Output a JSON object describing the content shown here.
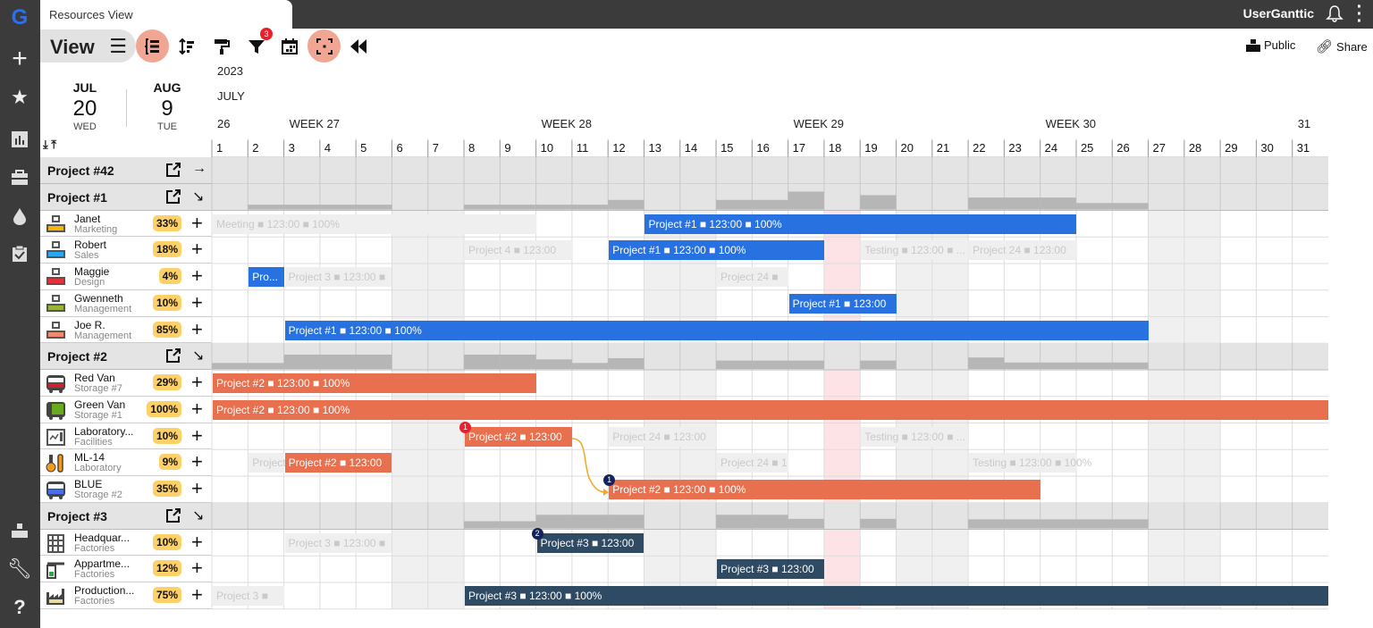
{
  "app": {
    "tab_title": "Resources View",
    "user": "UserGanttic",
    "view_label": "View",
    "public_label": "Public",
    "share_label": "Share",
    "filter_count": "3"
  },
  "colors": {
    "accent": "#f0a692",
    "blue": "#2771e0",
    "orange": "#e8704f",
    "navy": "#2f4a63",
    "pill": "#fdd168",
    "today": "#fde3e6"
  },
  "sidebar_icons": [
    "ganttic-logo-icon",
    "plus-icon",
    "star-icon",
    "report-icon",
    "briefcase-icon",
    "drop-icon",
    "clipboard-check-icon",
    "org-icon",
    "wrench-icon",
    "help-icon"
  ],
  "toolbar": [
    "collapse-tree-icon",
    "sort-icon",
    "paint-roller-icon",
    "filter-icon",
    "calendar-icon",
    "focus-icon",
    "rewind-icon"
  ],
  "dates": {
    "from": {
      "month": "JUL",
      "day": "20",
      "weekday": "WED"
    },
    "to": {
      "month": "AUG",
      "day": "9",
      "weekday": "TUE"
    }
  },
  "timeline": {
    "year": "2023",
    "month": "JULY",
    "weeks": [
      {
        "label": "26",
        "day": 1
      },
      {
        "label": "WEEK 27",
        "day": 3
      },
      {
        "label": "WEEK 28",
        "day": 10
      },
      {
        "label": "WEEK 29",
        "day": 17
      },
      {
        "label": "WEEK 30",
        "day": 24
      },
      {
        "label": "31",
        "day": 31
      }
    ],
    "days": 31,
    "shaded_days": [
      6,
      7,
      13,
      14,
      20,
      21,
      27,
      28
    ],
    "highlight_day": 18
  },
  "rows": [
    {
      "type": "project",
      "name": "Project #42",
      "arrow": "→",
      "load": []
    },
    {
      "type": "project",
      "name": "Project #1",
      "arrow": "↘",
      "load": [
        0,
        0.2,
        0.2,
        0.2,
        0.2,
        0,
        0,
        0.2,
        0.2,
        0.2,
        0.2,
        0.4,
        0,
        0,
        0.4,
        0.4,
        0.75,
        0,
        0.6,
        0,
        0,
        0.5,
        0.5,
        0.5,
        0.27,
        0.27,
        0,
        0,
        0,
        0,
        0
      ]
    },
    {
      "type": "resource",
      "name": "Janet",
      "sub": "Marketing",
      "pct": "33%",
      "icon": "team-icon",
      "icolor": "#f5b400",
      "bars": [
        {
          "s": 1,
          "e": 9,
          "kind": "ghost",
          "label": "Meeting ■ 123:00 ■ 100%"
        },
        {
          "s": 13,
          "e": 24,
          "kind": "blue",
          "label": "Project #1 ■ 123:00 ■ 100%"
        }
      ]
    },
    {
      "type": "resource",
      "name": "Robert",
      "sub": "Sales",
      "pct": "18%",
      "icon": "team-icon",
      "icolor": "#2aa8ee",
      "bars": [
        {
          "s": 8,
          "e": 10,
          "kind": "ghost",
          "label": "Project 4 ■ 123:00"
        },
        {
          "s": 12,
          "e": 17,
          "kind": "blue",
          "label": "Project #1 ■ 123:00 ■ 100%"
        },
        {
          "s": 19,
          "e": 21,
          "kind": "ghost",
          "label": "Testing ■ 123:00 ■ ..."
        },
        {
          "s": 22,
          "e": 24,
          "kind": "ghost",
          "label": "Project 24 ■ 123:00"
        }
      ]
    },
    {
      "type": "resource",
      "name": "Maggie",
      "sub": "Design",
      "pct": "4%",
      "icon": "team-icon",
      "icolor": "#e8303a",
      "bars": [
        {
          "s": 2,
          "e": 2,
          "kind": "blue",
          "label": "Pro..."
        },
        {
          "s": 3,
          "e": 5,
          "kind": "ghost",
          "label": "Project 3 ■ 123:00 ■"
        },
        {
          "s": 15,
          "e": 16,
          "kind": "ghost",
          "label": "Project 24 ■"
        }
      ]
    },
    {
      "type": "resource",
      "name": "Gwenneth",
      "sub": "Management",
      "pct": "10%",
      "icon": "team-icon",
      "icolor": "#9ab43a",
      "bars": [
        {
          "s": 17,
          "e": 19,
          "kind": "blue",
          "label": "Project #1 ■ 123:00"
        }
      ]
    },
    {
      "type": "resource",
      "name": "Joe R.",
      "sub": "Management",
      "pct": "85%",
      "icon": "team-icon",
      "icolor": "#f08a6e",
      "bars": [
        {
          "s": 3,
          "e": 26,
          "kind": "blue",
          "label": "Project #1 ■ 123:00 ■ 100%"
        }
      ]
    },
    {
      "type": "project",
      "name": "Project #2",
      "arrow": "↘",
      "load": [
        0.25,
        0.25,
        0.6,
        0.6,
        0.6,
        0,
        0,
        0.6,
        0.6,
        0.4,
        0.25,
        0.45,
        0,
        0,
        0.35,
        0.35,
        0.35,
        0,
        0.35,
        0,
        0,
        0.48,
        0.27,
        0.27,
        0.27,
        0.27,
        0,
        0,
        0,
        0,
        0
      ]
    },
    {
      "type": "resource",
      "name": "Red Van",
      "sub": "Storage #7",
      "pct": "29%",
      "icon": "van-icon",
      "icolor": "#c8262c",
      "bars": [
        {
          "s": 1,
          "e": 9,
          "kind": "orange",
          "label": "Project #2 ■ 123:00 ■ 100%"
        }
      ]
    },
    {
      "type": "resource",
      "name": "Green Van",
      "sub": "Storage #1",
      "pct": "100%",
      "icon": "truck-icon",
      "icolor": "#6aaa1e",
      "bars": [
        {
          "s": 1,
          "e": 31,
          "kind": "orange",
          "label": "Project #2 ■ 123:00 ■ 100%"
        }
      ]
    },
    {
      "type": "resource",
      "name": "Laboratory...",
      "sub": "Facilities",
      "pct": "10%",
      "icon": "lab-panel-icon",
      "icolor": "#555",
      "bars": [
        {
          "s": 8,
          "e": 10,
          "kind": "orange",
          "label": "Project #2 ■ 123:00",
          "badge": "1",
          "badge_color": "#e8202a"
        },
        {
          "s": 12,
          "e": 14,
          "kind": "ghost",
          "label": "Project 24 ■ 123:00"
        },
        {
          "s": 19,
          "e": 21,
          "kind": "ghost",
          "label": "Testing ■ 123:00 ■ ..."
        }
      ]
    },
    {
      "type": "resource",
      "name": "ML-14",
      "sub": "Laboratory",
      "pct": "9%",
      "icon": "thermometer-icon",
      "icolor": "#f29a1e",
      "bars": [
        {
          "s": 2,
          "e": 2,
          "kind": "ghost",
          "label": "Project"
        },
        {
          "s": 3,
          "e": 5,
          "kind": "orange",
          "label": "Project #2 ■ 123:00"
        },
        {
          "s": 15,
          "e": 16,
          "kind": "ghost",
          "label": "Project 24 ■ 1"
        },
        {
          "s": 22,
          "e": 24,
          "kind": "ghost",
          "label": "Testing ■ 123:00 ■ 100%"
        }
      ]
    },
    {
      "type": "resource",
      "name": "BLUE",
      "sub": "Storage #2",
      "pct": "35%",
      "icon": "van-icon",
      "icolor": "#4a6ee8",
      "bars": [
        {
          "s": 12,
          "e": 23,
          "kind": "orange",
          "label": "Project #2 ■ 123:00 ■ 100%",
          "badge": "1",
          "badge_color": "#14235a"
        }
      ]
    },
    {
      "type": "project",
      "name": "Project #3",
      "arrow": "↘",
      "load": [
        0,
        0,
        0,
        0,
        0,
        0,
        0,
        0.3,
        0.3,
        0.57,
        0.57,
        0.57,
        0,
        0,
        0.57,
        0.57,
        0.4,
        0,
        0.4,
        0,
        0,
        0.38,
        0.38,
        0.38,
        0.38,
        0.38,
        0,
        0,
        0,
        0,
        0
      ]
    },
    {
      "type": "resource",
      "name": "Headquar...",
      "sub": "Factories",
      "pct": "10%",
      "icon": "building-icon",
      "icolor": "#555",
      "bars": [
        {
          "s": 3,
          "e": 5,
          "kind": "ghost",
          "label": "Project 3 ■ 123:00 ■"
        },
        {
          "s": 10,
          "e": 12,
          "kind": "navy",
          "label": "Project #3 ■ 123:00",
          "badge": "2",
          "badge_color": "#14235a"
        }
      ]
    },
    {
      "type": "resource",
      "name": "Appartme...",
      "sub": "Factories",
      "pct": "12%",
      "icon": "door-icon",
      "icolor": "#2ba84a",
      "bars": [
        {
          "s": 15,
          "e": 17,
          "kind": "navy",
          "label": "Project #3 ■ 123:00"
        }
      ]
    },
    {
      "type": "resource",
      "name": "Production...",
      "sub": "Factories",
      "pct": "75%",
      "icon": "factory-icon",
      "icolor": "#e8dca0",
      "bars": [
        {
          "s": 1,
          "e": 2,
          "kind": "ghost",
          "label": "Project 3 ■"
        },
        {
          "s": 8,
          "e": 31,
          "kind": "navy",
          "label": "Project #3 ■ 123:00 ■ 100%"
        }
      ]
    }
  ]
}
